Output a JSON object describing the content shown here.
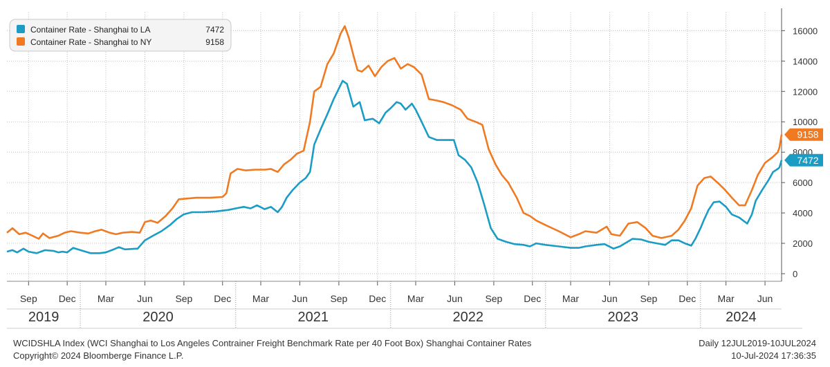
{
  "chart_data": {
    "type": "line",
    "x_axis": {
      "type": "date",
      "range": [
        "2019-07-12",
        "2024-07-10"
      ],
      "month_ticks": [
        {
          "date": "2019-09-01",
          "label": "Sep"
        },
        {
          "date": "2019-12-01",
          "label": "Dec"
        },
        {
          "date": "2020-03-01",
          "label": "Mar"
        },
        {
          "date": "2020-06-01",
          "label": "Jun"
        },
        {
          "date": "2020-09-01",
          "label": "Sep"
        },
        {
          "date": "2020-12-01",
          "label": "Dec"
        },
        {
          "date": "2021-03-01",
          "label": "Mar"
        },
        {
          "date": "2021-06-01",
          "label": "Jun"
        },
        {
          "date": "2021-09-01",
          "label": "Sep"
        },
        {
          "date": "2021-12-01",
          "label": "Dec"
        },
        {
          "date": "2022-03-01",
          "label": "Mar"
        },
        {
          "date": "2022-06-01",
          "label": "Jun"
        },
        {
          "date": "2022-09-01",
          "label": "Sep"
        },
        {
          "date": "2022-12-01",
          "label": "Dec"
        },
        {
          "date": "2023-03-01",
          "label": "Mar"
        },
        {
          "date": "2023-06-01",
          "label": "Jun"
        },
        {
          "date": "2023-09-01",
          "label": "Sep"
        },
        {
          "date": "2023-12-01",
          "label": "Dec"
        },
        {
          "date": "2024-03-01",
          "label": "Mar"
        },
        {
          "date": "2024-06-01",
          "label": "Jun"
        }
      ],
      "year_labels": [
        {
          "label": "2019",
          "from": "2019-07-12",
          "to": "2020-01-01"
        },
        {
          "label": "2020",
          "from": "2020-01-01",
          "to": "2021-01-01"
        },
        {
          "label": "2021",
          "from": "2021-01-01",
          "to": "2022-01-01"
        },
        {
          "label": "2022",
          "from": "2022-01-01",
          "to": "2023-01-01"
        },
        {
          "label": "2023",
          "from": "2023-01-01",
          "to": "2024-01-01"
        },
        {
          "label": "2024",
          "from": "2024-01-01",
          "to": "2024-07-10"
        }
      ]
    },
    "y_axis": {
      "position": "right",
      "range": [
        -500,
        17200
      ],
      "ticks": [
        0,
        2000,
        4000,
        6000,
        8000,
        10000,
        12000,
        14000,
        16000
      ],
      "tick_labels": [
        "0",
        "2000",
        "4000",
        "6000",
        "8000",
        "10000",
        "12000",
        "14000",
        "16000"
      ]
    },
    "grid": "dotted",
    "legend": {
      "placement": "top-left",
      "entries": [
        {
          "name": "Container Rate - Shanghai to LA",
          "value": "7472",
          "color": "#1b9cc4"
        },
        {
          "name": "Container Rate - Shanghai to NY",
          "value": "9158",
          "color": "#f07a22"
        }
      ]
    },
    "series": [
      {
        "name": "Container Rate - Shanghai to LA",
        "color": "#1b9cc4",
        "last_value": "7472",
        "points": [
          [
            "2019-07-12",
            1450
          ],
          [
            "2019-07-25",
            1550
          ],
          [
            "2019-08-05",
            1400
          ],
          [
            "2019-08-20",
            1650
          ],
          [
            "2019-09-01",
            1450
          ],
          [
            "2019-09-20",
            1350
          ],
          [
            "2019-10-10",
            1550
          ],
          [
            "2019-10-30",
            1500
          ],
          [
            "2019-11-10",
            1400
          ],
          [
            "2019-11-20",
            1450
          ],
          [
            "2019-12-01",
            1400
          ],
          [
            "2019-12-15",
            1700
          ],
          [
            "2020-01-01",
            1550
          ],
          [
            "2020-01-25",
            1350
          ],
          [
            "2020-02-15",
            1350
          ],
          [
            "2020-03-01",
            1400
          ],
          [
            "2020-03-15",
            1550
          ],
          [
            "2020-04-01",
            1750
          ],
          [
            "2020-04-15",
            1600
          ],
          [
            "2020-05-15",
            1650
          ],
          [
            "2020-06-01",
            2200
          ],
          [
            "2020-06-20",
            2500
          ],
          [
            "2020-07-10",
            2800
          ],
          [
            "2020-07-30",
            3200
          ],
          [
            "2020-08-15",
            3600
          ],
          [
            "2020-08-31",
            3900
          ],
          [
            "2020-09-20",
            4050
          ],
          [
            "2020-10-15",
            4050
          ],
          [
            "2020-11-15",
            4100
          ],
          [
            "2020-12-15",
            4200
          ],
          [
            "2021-01-01",
            4300
          ],
          [
            "2021-01-20",
            4400
          ],
          [
            "2021-02-05",
            4300
          ],
          [
            "2021-02-20",
            4500
          ],
          [
            "2021-03-10",
            4250
          ],
          [
            "2021-03-25",
            4400
          ],
          [
            "2021-04-10",
            4050
          ],
          [
            "2021-04-20",
            4400
          ],
          [
            "2021-05-01",
            5000
          ],
          [
            "2021-05-15",
            5500
          ],
          [
            "2021-06-01",
            6000
          ],
          [
            "2021-06-15",
            6300
          ],
          [
            "2021-06-25",
            6700
          ],
          [
            "2021-07-05",
            8500
          ],
          [
            "2021-07-20",
            9500
          ],
          [
            "2021-08-05",
            10500
          ],
          [
            "2021-08-20",
            11500
          ],
          [
            "2021-09-10",
            12700
          ],
          [
            "2021-09-20",
            12500
          ],
          [
            "2021-10-05",
            11000
          ],
          [
            "2021-10-20",
            11300
          ],
          [
            "2021-11-01",
            10100
          ],
          [
            "2021-11-20",
            10200
          ],
          [
            "2021-12-05",
            9900
          ],
          [
            "2021-12-20",
            10600
          ],
          [
            "2022-01-01",
            10900
          ],
          [
            "2022-01-15",
            11300
          ],
          [
            "2022-01-25",
            11200
          ],
          [
            "2022-02-05",
            10800
          ],
          [
            "2022-02-20",
            11200
          ],
          [
            "2022-03-01",
            10800
          ],
          [
            "2022-03-15",
            10000
          ],
          [
            "2022-04-01",
            9000
          ],
          [
            "2022-04-20",
            8800
          ],
          [
            "2022-05-10",
            8800
          ],
          [
            "2022-05-30",
            8800
          ],
          [
            "2022-06-10",
            7800
          ],
          [
            "2022-06-25",
            7500
          ],
          [
            "2022-07-10",
            7000
          ],
          [
            "2022-07-25",
            6000
          ],
          [
            "2022-08-10",
            4500
          ],
          [
            "2022-08-25",
            3000
          ],
          [
            "2022-09-10",
            2300
          ],
          [
            "2022-09-30",
            2100
          ],
          [
            "2022-10-20",
            1950
          ],
          [
            "2022-11-10",
            1900
          ],
          [
            "2022-11-25",
            1800
          ],
          [
            "2022-12-10",
            2000
          ],
          [
            "2023-01-01",
            1900
          ],
          [
            "2023-02-01",
            1800
          ],
          [
            "2023-03-01",
            1700
          ],
          [
            "2023-03-20",
            1700
          ],
          [
            "2023-04-05",
            1800
          ],
          [
            "2023-05-01",
            1900
          ],
          [
            "2023-05-20",
            1950
          ],
          [
            "2023-06-10",
            1650
          ],
          [
            "2023-06-25",
            1800
          ],
          [
            "2023-07-10",
            2050
          ],
          [
            "2023-07-25",
            2300
          ],
          [
            "2023-08-15",
            2250
          ],
          [
            "2023-09-01",
            2100
          ],
          [
            "2023-09-20",
            2000
          ],
          [
            "2023-10-10",
            1900
          ],
          [
            "2023-10-25",
            2200
          ],
          [
            "2023-11-10",
            2200
          ],
          [
            "2023-11-25",
            2000
          ],
          [
            "2023-12-10",
            1850
          ],
          [
            "2023-12-20",
            2300
          ],
          [
            "2024-01-01",
            3000
          ],
          [
            "2024-01-10",
            3600
          ],
          [
            "2024-01-20",
            4200
          ],
          [
            "2024-02-01",
            4700
          ],
          [
            "2024-02-15",
            4750
          ],
          [
            "2024-03-01",
            4400
          ],
          [
            "2024-03-15",
            3900
          ],
          [
            "2024-04-01",
            3700
          ],
          [
            "2024-04-20",
            3300
          ],
          [
            "2024-05-01",
            3900
          ],
          [
            "2024-05-10",
            4800
          ],
          [
            "2024-05-25",
            5500
          ],
          [
            "2024-06-10",
            6200
          ],
          [
            "2024-06-20",
            6700
          ],
          [
            "2024-07-01",
            6900
          ],
          [
            "2024-07-05",
            7000
          ],
          [
            "2024-07-10",
            7472
          ]
        ]
      },
      {
        "name": "Container Rate - Shanghai to NY",
        "color": "#f07a22",
        "last_value": "9158",
        "points": [
          [
            "2019-07-12",
            2700
          ],
          [
            "2019-07-25",
            3000
          ],
          [
            "2019-08-10",
            2600
          ],
          [
            "2019-08-25",
            2700
          ],
          [
            "2019-09-10",
            2500
          ],
          [
            "2019-09-25",
            2300
          ],
          [
            "2019-10-05",
            2650
          ],
          [
            "2019-10-20",
            2350
          ],
          [
            "2019-11-10",
            2500
          ],
          [
            "2019-11-25",
            2700
          ],
          [
            "2019-12-10",
            2800
          ],
          [
            "2020-01-01",
            2700
          ],
          [
            "2020-01-20",
            2650
          ],
          [
            "2020-02-05",
            2800
          ],
          [
            "2020-02-20",
            2900
          ],
          [
            "2020-03-10",
            2700
          ],
          [
            "2020-03-25",
            2600
          ],
          [
            "2020-04-10",
            2700
          ],
          [
            "2020-05-01",
            2750
          ],
          [
            "2020-05-20",
            2700
          ],
          [
            "2020-06-01",
            3400
          ],
          [
            "2020-06-15",
            3500
          ],
          [
            "2020-07-01",
            3350
          ],
          [
            "2020-07-20",
            3800
          ],
          [
            "2020-08-05",
            4300
          ],
          [
            "2020-08-20",
            4900
          ],
          [
            "2020-09-10",
            4950
          ],
          [
            "2020-10-01",
            5000
          ],
          [
            "2020-11-01",
            5000
          ],
          [
            "2020-12-01",
            5050
          ],
          [
            "2020-12-10",
            5300
          ],
          [
            "2020-12-20",
            6600
          ],
          [
            "2021-01-05",
            6900
          ],
          [
            "2021-01-25",
            6800
          ],
          [
            "2021-02-15",
            6850
          ],
          [
            "2021-03-10",
            6850
          ],
          [
            "2021-03-25",
            6900
          ],
          [
            "2021-04-10",
            6700
          ],
          [
            "2021-04-25",
            7200
          ],
          [
            "2021-05-10",
            7500
          ],
          [
            "2021-05-25",
            7900
          ],
          [
            "2021-06-10",
            8100
          ],
          [
            "2021-06-25",
            10000
          ],
          [
            "2021-07-05",
            12000
          ],
          [
            "2021-07-20",
            12300
          ],
          [
            "2021-08-05",
            13800
          ],
          [
            "2021-08-20",
            14500
          ],
          [
            "2021-09-05",
            15800
          ],
          [
            "2021-09-15",
            16300
          ],
          [
            "2021-09-25",
            15500
          ],
          [
            "2021-10-05",
            14400
          ],
          [
            "2021-10-15",
            13400
          ],
          [
            "2021-10-25",
            13300
          ],
          [
            "2021-11-10",
            13700
          ],
          [
            "2021-11-25",
            13000
          ],
          [
            "2021-12-10",
            13600
          ],
          [
            "2021-12-25",
            14000
          ],
          [
            "2022-01-10",
            14200
          ],
          [
            "2022-01-25",
            13500
          ],
          [
            "2022-02-10",
            13800
          ],
          [
            "2022-02-25",
            13600
          ],
          [
            "2022-03-15",
            13100
          ],
          [
            "2022-04-01",
            11500
          ],
          [
            "2022-04-20",
            11400
          ],
          [
            "2022-05-05",
            11300
          ],
          [
            "2022-05-25",
            11100
          ],
          [
            "2022-06-15",
            10800
          ],
          [
            "2022-07-01",
            10200
          ],
          [
            "2022-07-20",
            10000
          ],
          [
            "2022-08-05",
            9800
          ],
          [
            "2022-08-20",
            8200
          ],
          [
            "2022-09-05",
            7200
          ],
          [
            "2022-09-20",
            6500
          ],
          [
            "2022-10-05",
            6000
          ],
          [
            "2022-10-25",
            5000
          ],
          [
            "2022-11-10",
            4000
          ],
          [
            "2022-11-25",
            3800
          ],
          [
            "2022-12-10",
            3500
          ],
          [
            "2023-01-01",
            3200
          ],
          [
            "2023-02-01",
            2800
          ],
          [
            "2023-03-01",
            2400
          ],
          [
            "2023-03-20",
            2600
          ],
          [
            "2023-04-05",
            2800
          ],
          [
            "2023-05-01",
            2700
          ],
          [
            "2023-05-25",
            3100
          ],
          [
            "2023-06-05",
            2600
          ],
          [
            "2023-06-25",
            2500
          ],
          [
            "2023-07-15",
            3300
          ],
          [
            "2023-08-05",
            3400
          ],
          [
            "2023-08-25",
            3000
          ],
          [
            "2023-09-10",
            2500
          ],
          [
            "2023-10-01",
            2350
          ],
          [
            "2023-10-25",
            2500
          ],
          [
            "2023-11-10",
            2900
          ],
          [
            "2023-11-25",
            3500
          ],
          [
            "2023-12-10",
            4300
          ],
          [
            "2023-12-25",
            5800
          ],
          [
            "2024-01-10",
            6300
          ],
          [
            "2024-01-25",
            6400
          ],
          [
            "2024-02-10",
            6000
          ],
          [
            "2024-02-25",
            5600
          ],
          [
            "2024-03-15",
            5000
          ],
          [
            "2024-04-01",
            4500
          ],
          [
            "2024-04-15",
            4500
          ],
          [
            "2024-05-01",
            5500
          ],
          [
            "2024-05-15",
            6500
          ],
          [
            "2024-06-01",
            7300
          ],
          [
            "2024-06-20",
            7700
          ],
          [
            "2024-07-01",
            8000
          ],
          [
            "2024-07-05",
            8300
          ],
          [
            "2024-07-10",
            9158
          ]
        ]
      }
    ]
  },
  "footer": {
    "source": "WCIDSHLA Index (WCI Shanghai to Los Angeles Contrainer Freight Benchmark Rate per 40 Foot Box) Shanghai Container Rates",
    "copyright": "Copyright© 2024 Bloomberge Finance L.P.",
    "range": "Daily 12JUL2019-10JUL2024",
    "timestamp": "10-Jul-2024 17:36:35"
  }
}
